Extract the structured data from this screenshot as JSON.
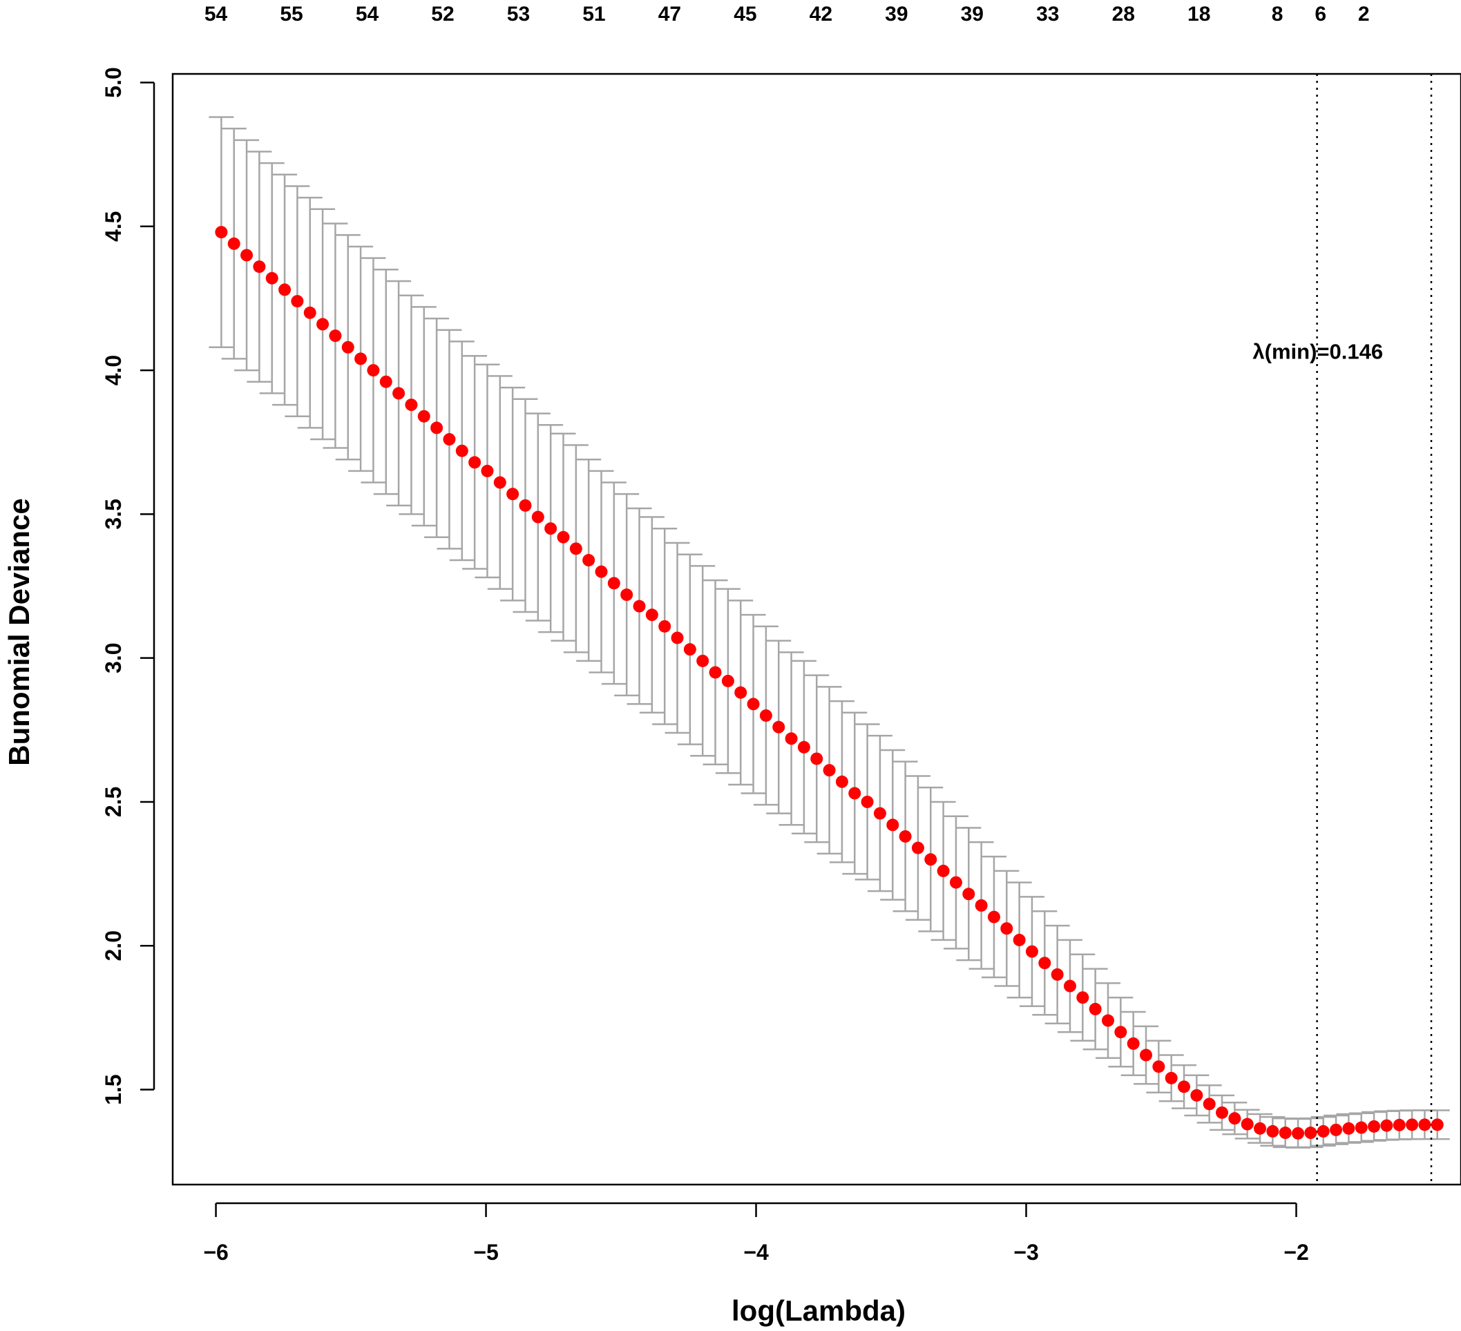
{
  "chart_data": {
    "type": "scatter",
    "xlabel": "log(Lambda)",
    "ylabel": "Bunomial Deviance",
    "xlim": [
      -6.16,
      -1.39
    ],
    "ylim": [
      1.17,
      5.03
    ],
    "x_ticks": [
      -6,
      -5,
      -4,
      -3,
      -2
    ],
    "x_tick_labels": [
      "−6",
      "−5",
      "−4",
      "−3",
      "−2"
    ],
    "y_ticks": [
      1.5,
      2.0,
      2.5,
      3.0,
      3.5,
      4.0,
      4.5,
      5.0
    ],
    "y_tick_labels": [
      "1.5",
      "2.0",
      "2.5",
      "3.0",
      "3.5",
      "4.0",
      "4.5",
      "5.0"
    ],
    "top_axis": {
      "positions": [
        -6.0,
        -5.72,
        -5.44,
        -5.16,
        -4.88,
        -4.6,
        -4.32,
        -4.04,
        -3.76,
        -3.48,
        -3.2,
        -2.92,
        -2.64,
        -2.36,
        -2.07,
        -1.91,
        -1.75
      ],
      "labels": [
        "54",
        "55",
        "54",
        "52",
        "53",
        "51",
        "47",
        "45",
        "42",
        "39",
        "39",
        "33",
        "28",
        "18",
        "8",
        "6",
        "2"
      ]
    },
    "lambda_min_log": -1.923,
    "lambda_1se_log": -1.5,
    "annotation": {
      "text": "λ(min)=0.146",
      "x": -1.92,
      "y": 4.04
    },
    "series": [
      {
        "x_start": -5.98,
        "x_end": -1.48,
        "x_step": 0.0469,
        "mean": [
          4.48,
          4.44,
          4.4,
          4.36,
          4.32,
          4.28,
          4.24,
          4.2,
          4.16,
          4.12,
          4.08,
          4.04,
          4.0,
          3.96,
          3.92,
          3.88,
          3.84,
          3.8,
          3.76,
          3.72,
          3.68,
          3.65,
          3.61,
          3.57,
          3.53,
          3.49,
          3.45,
          3.42,
          3.38,
          3.34,
          3.3,
          3.26,
          3.22,
          3.18,
          3.15,
          3.11,
          3.07,
          3.03,
          2.99,
          2.95,
          2.92,
          2.88,
          2.84,
          2.8,
          2.76,
          2.72,
          2.69,
          2.65,
          2.61,
          2.57,
          2.53,
          2.5,
          2.46,
          2.42,
          2.38,
          2.34,
          2.3,
          2.26,
          2.22,
          2.18,
          2.14,
          2.1,
          2.06,
          2.02,
          1.98,
          1.94,
          1.9,
          1.86,
          1.82,
          1.78,
          1.74,
          1.7,
          1.66,
          1.62,
          1.58,
          1.54,
          1.51,
          1.48,
          1.45,
          1.42,
          1.4,
          1.38,
          1.365,
          1.355,
          1.35,
          1.348,
          1.35,
          1.355,
          1.36,
          1.365,
          1.368,
          1.372,
          1.375,
          1.377,
          1.378,
          1.378,
          1.378
        ],
        "halfwidth": [
          0.4,
          0.4,
          0.4,
          0.4,
          0.4,
          0.4,
          0.4,
          0.4,
          0.4,
          0.39,
          0.39,
          0.39,
          0.39,
          0.39,
          0.39,
          0.38,
          0.38,
          0.38,
          0.38,
          0.38,
          0.37,
          0.37,
          0.37,
          0.37,
          0.37,
          0.36,
          0.36,
          0.36,
          0.36,
          0.35,
          0.35,
          0.35,
          0.35,
          0.34,
          0.34,
          0.34,
          0.33,
          0.33,
          0.33,
          0.32,
          0.32,
          0.32,
          0.31,
          0.31,
          0.3,
          0.3,
          0.3,
          0.29,
          0.29,
          0.28,
          0.28,
          0.27,
          0.27,
          0.26,
          0.26,
          0.25,
          0.25,
          0.24,
          0.23,
          0.23,
          0.22,
          0.21,
          0.2,
          0.2,
          0.19,
          0.18,
          0.17,
          0.16,
          0.15,
          0.14,
          0.13,
          0.12,
          0.11,
          0.1,
          0.09,
          0.08,
          0.075,
          0.07,
          0.065,
          0.06,
          0.055,
          0.05,
          0.05,
          0.05,
          0.05,
          0.05,
          0.05,
          0.05,
          0.05,
          0.05,
          0.05,
          0.05,
          0.05,
          0.05,
          0.05,
          0.05,
          0.05
        ]
      }
    ],
    "colors": {
      "point": "#ff0000",
      "errorbar": "#a6a6a6",
      "vline": "#000000"
    }
  }
}
